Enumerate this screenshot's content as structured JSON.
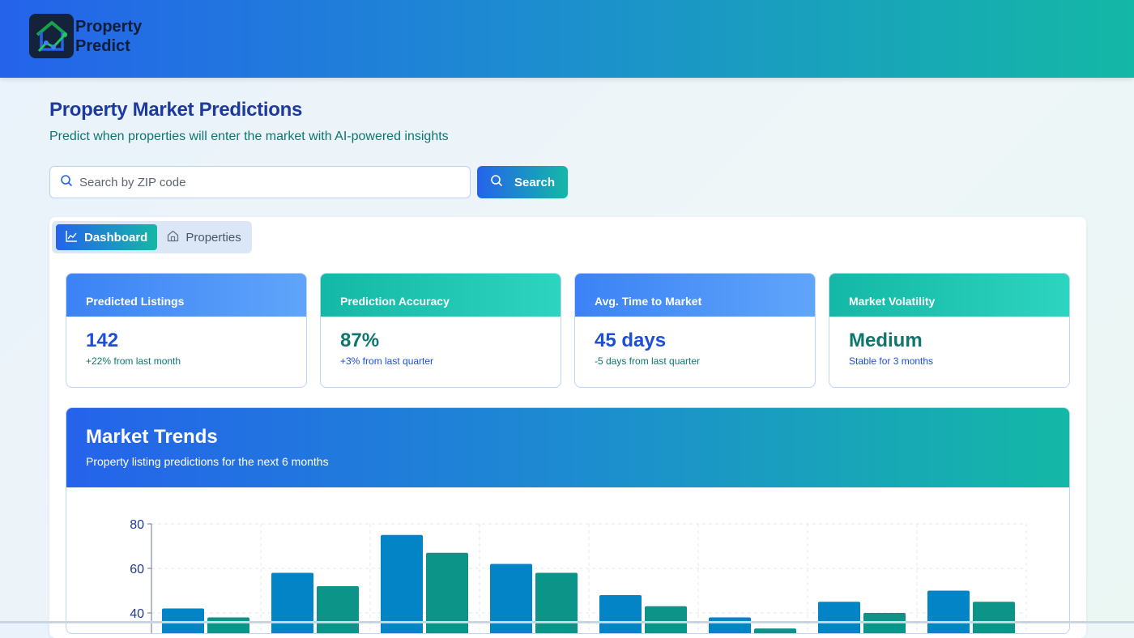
{
  "app": {
    "logo_line1": "Property",
    "logo_line2": "Predict",
    "logo_icon": "house-chart-icon"
  },
  "page": {
    "title": "Property Market Predictions",
    "subtitle": "Predict when properties will enter the market with AI-powered insights"
  },
  "search": {
    "placeholder": "Search by ZIP code",
    "value": "",
    "button_label": "Search",
    "icon": "search-icon"
  },
  "tabs": [
    {
      "label": "Dashboard",
      "icon": "line-chart-icon",
      "active": true
    },
    {
      "label": "Properties",
      "icon": "home-icon",
      "active": false
    }
  ],
  "cards": [
    {
      "title": "Predicted Listings",
      "value": "142",
      "note": "+22% from last month"
    },
    {
      "title": "Prediction Accuracy",
      "value": "87%",
      "note": "+3% from last quarter"
    },
    {
      "title": "Avg. Time to Market",
      "value": "45 days",
      "note": "-5 days from last quarter"
    },
    {
      "title": "Market Volatility",
      "value": "Medium",
      "note": "Stable for 3 months"
    }
  ],
  "trends": {
    "title": "Market Trends",
    "subtitle": "Property listing predictions for the next 6 months"
  },
  "colors": {
    "series_a": "#0284c7",
    "series_b": "#0d9488",
    "header_start": "#2563eb",
    "header_end": "#14b8a6"
  },
  "chart_data": {
    "type": "bar",
    "ylim": [
      0,
      80
    ],
    "yticks": [
      "40",
      "60",
      "80"
    ],
    "series": [
      {
        "values": [
          42,
          58,
          75,
          62,
          48,
          38,
          45,
          50
        ]
      },
      {
        "values": [
          38,
          52,
          67,
          58,
          43,
          33,
          40,
          45
        ]
      }
    ]
  }
}
